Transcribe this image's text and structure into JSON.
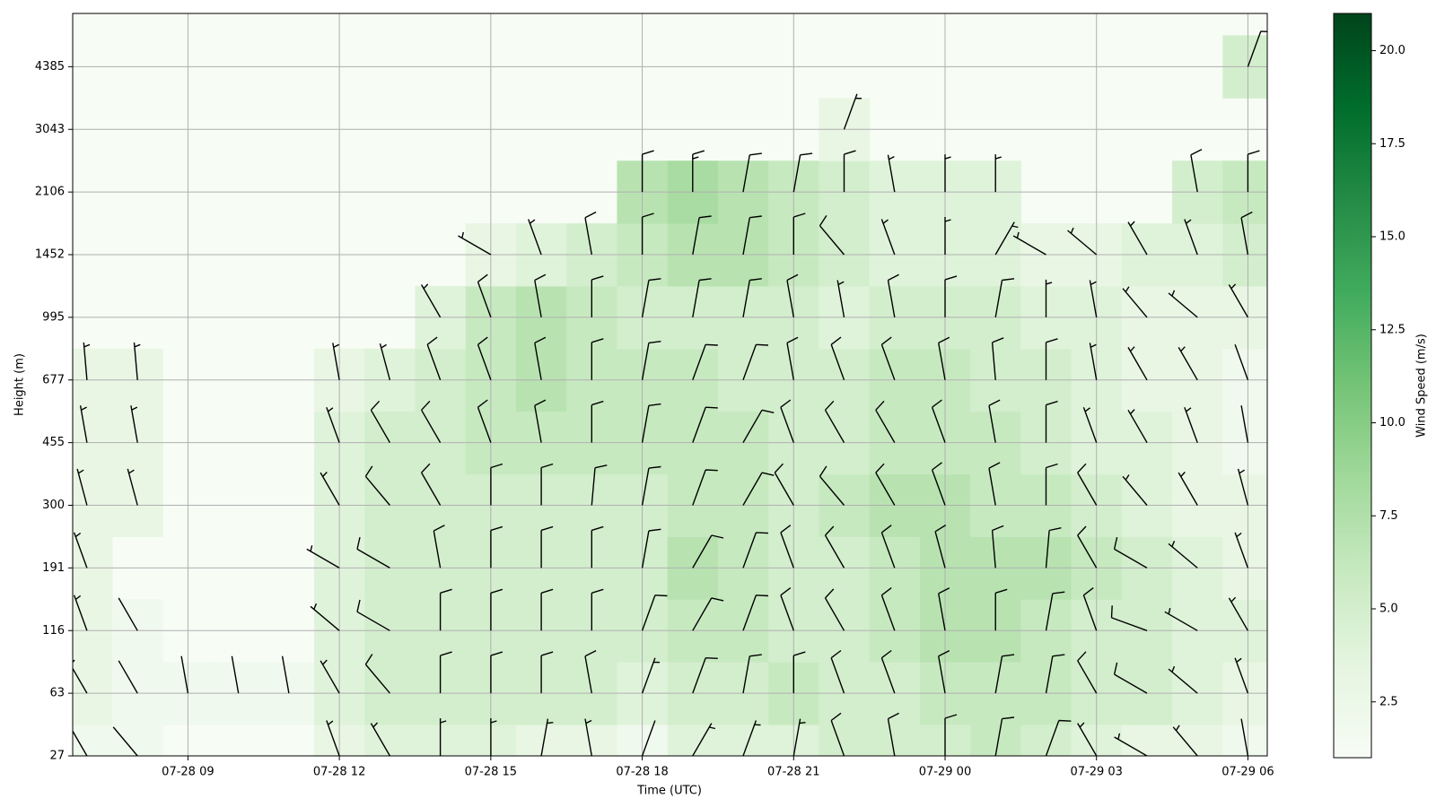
{
  "chart_data": {
    "type": "heatmap",
    "xlabel": "Time (UTC)",
    "ylabel": "Height (m)",
    "colormap": "Greens",
    "x": [
      "07-28 07",
      "07-28 08",
      "07-28 09",
      "07-28 10",
      "07-28 11",
      "07-28 12",
      "07-28 13",
      "07-28 14",
      "07-28 15",
      "07-28 16",
      "07-28 17",
      "07-28 18",
      "07-28 19",
      "07-28 20",
      "07-28 21",
      "07-28 22",
      "07-28 23",
      "07-29 00",
      "07-29 01",
      "07-29 02",
      "07-29 03",
      "07-29 04",
      "07-29 05",
      "07-29 06"
    ],
    "xlim": [
      "07-28 06:43",
      "07-29 06:23"
    ],
    "xticks": [
      "07-28 09",
      "07-28 12",
      "07-28 15",
      "07-28 18",
      "07-28 21",
      "07-29 00",
      "07-29 03",
      "07-29 06"
    ],
    "y": [
      27,
      63,
      116,
      191,
      300,
      455,
      677,
      995,
      1452,
      2106,
      3043,
      4385
    ],
    "grid": true,
    "speed": [
      [
        2,
        2,
        null,
        null,
        null,
        3,
        4,
        4,
        4,
        3,
        3,
        2,
        4,
        4,
        4,
        5,
        5,
        5,
        6,
        5,
        4,
        3,
        3,
        2
      ],
      [
        3,
        2,
        2,
        2,
        2,
        4,
        5,
        5,
        5,
        5,
        5,
        4,
        5,
        5,
        6,
        5,
        5,
        6,
        6,
        6,
        5,
        5,
        4,
        3
      ],
      [
        3,
        2,
        null,
        null,
        null,
        4,
        5,
        5,
        5,
        5,
        5,
        5,
        6,
        6,
        5,
        5,
        6,
        7,
        7,
        6,
        5,
        5,
        4,
        4
      ],
      [
        3,
        null,
        null,
        null,
        null,
        4,
        5,
        5,
        5,
        5,
        5,
        5,
        7,
        6,
        5,
        5,
        6,
        7,
        7,
        7,
        6,
        5,
        4,
        3
      ],
      [
        3,
        3,
        null,
        null,
        null,
        4,
        5,
        5,
        5,
        5,
        5,
        5,
        6,
        6,
        5,
        6,
        7,
        7,
        6,
        6,
        5,
        4,
        3,
        3
      ],
      [
        3,
        3,
        null,
        null,
        null,
        4,
        5,
        5,
        6,
        6,
        6,
        6,
        6,
        6,
        5,
        5,
        6,
        6,
        6,
        5,
        4,
        4,
        3,
        2
      ],
      [
        3,
        3,
        null,
        null,
        null,
        3,
        4,
        5,
        6,
        7,
        6,
        6,
        6,
        5,
        5,
        5,
        6,
        6,
        5,
        5,
        4,
        3,
        3,
        2
      ],
      [
        null,
        null,
        null,
        null,
        null,
        null,
        null,
        4,
        6,
        7,
        6,
        5,
        5,
        5,
        5,
        4,
        5,
        5,
        5,
        4,
        4,
        3,
        3,
        3
      ],
      [
        null,
        null,
        null,
        null,
        null,
        null,
        null,
        null,
        3,
        4,
        5,
        6,
        7,
        7,
        6,
        5,
        4,
        4,
        4,
        3,
        3,
        4,
        4,
        5
      ],
      [
        null,
        null,
        null,
        null,
        null,
        null,
        null,
        null,
        null,
        null,
        null,
        7,
        8,
        7,
        6,
        5,
        4,
        4,
        4,
        null,
        null,
        null,
        5,
        6
      ],
      [
        null,
        null,
        null,
        null,
        null,
        null,
        null,
        null,
        null,
        null,
        null,
        null,
        null,
        null,
        null,
        3,
        null,
        null,
        null,
        null,
        null,
        null,
        null,
        null
      ],
      [
        null,
        null,
        null,
        null,
        null,
        null,
        null,
        null,
        null,
        null,
        null,
        null,
        null,
        null,
        null,
        null,
        null,
        null,
        null,
        null,
        null,
        null,
        null,
        5
      ]
    ],
    "direction": [
      [
        330,
        320,
        null,
        null,
        null,
        340,
        330,
        0,
        0,
        10,
        350,
        20,
        30,
        20,
        10,
        340,
        350,
        0,
        10,
        20,
        330,
        300,
        320,
        350
      ],
      [
        330,
        330,
        350,
        350,
        350,
        330,
        320,
        0,
        0,
        0,
        350,
        20,
        20,
        10,
        0,
        340,
        340,
        350,
        10,
        10,
        330,
        300,
        310,
        340
      ],
      [
        340,
        330,
        null,
        null,
        null,
        310,
        300,
        0,
        0,
        0,
        0,
        20,
        30,
        20,
        340,
        330,
        340,
        350,
        0,
        10,
        340,
        290,
        300,
        330
      ],
      [
        340,
        null,
        null,
        null,
        null,
        300,
        300,
        350,
        0,
        0,
        0,
        10,
        30,
        20,
        340,
        330,
        340,
        345,
        355,
        5,
        330,
        300,
        310,
        340
      ],
      [
        345,
        345,
        null,
        null,
        null,
        330,
        320,
        330,
        0,
        0,
        5,
        10,
        20,
        30,
        330,
        320,
        330,
        340,
        350,
        0,
        330,
        320,
        330,
        345
      ],
      [
        350,
        350,
        null,
        null,
        null,
        340,
        330,
        330,
        340,
        350,
        0,
        10,
        20,
        30,
        340,
        330,
        330,
        340,
        350,
        0,
        340,
        330,
        340,
        350
      ],
      [
        355,
        355,
        null,
        null,
        null,
        350,
        345,
        340,
        340,
        350,
        0,
        10,
        20,
        20,
        350,
        340,
        340,
        350,
        355,
        0,
        350,
        330,
        330,
        340
      ],
      [
        null,
        null,
        null,
        null,
        null,
        null,
        null,
        330,
        340,
        350,
        0,
        10,
        10,
        10,
        350,
        350,
        350,
        0,
        10,
        0,
        350,
        320,
        310,
        330
      ],
      [
        null,
        null,
        null,
        null,
        null,
        null,
        null,
        null,
        300,
        340,
        350,
        0,
        10,
        10,
        0,
        320,
        340,
        0,
        30,
        300,
        310,
        330,
        340,
        350
      ],
      [
        null,
        null,
        null,
        null,
        null,
        null,
        null,
        null,
        null,
        null,
        null,
        0,
        0,
        10,
        10,
        0,
        350,
        0,
        0,
        null,
        null,
        null,
        350,
        0
      ],
      [
        null,
        null,
        null,
        null,
        null,
        null,
        null,
        null,
        null,
        null,
        null,
        null,
        null,
        null,
        null,
        20,
        null,
        null,
        null,
        null,
        null,
        null,
        null,
        null
      ],
      [
        null,
        null,
        null,
        null,
        null,
        null,
        null,
        null,
        null,
        null,
        null,
        null,
        null,
        null,
        null,
        null,
        null,
        null,
        null,
        null,
        null,
        null,
        null,
        20
      ]
    ],
    "colorbar": {
      "label": "Wind Speed (m/s)",
      "clim": [
        1,
        21
      ],
      "ticks": [
        2.5,
        {
          "value": 5,
          "label": "5.0"
        },
        7.5,
        {
          "value": 10,
          "label": "10.0"
        },
        12.5,
        {
          "value": 15,
          "label": "15.0"
        },
        17.5,
        {
          "value": 20,
          "label": "20.0"
        }
      ]
    }
  }
}
